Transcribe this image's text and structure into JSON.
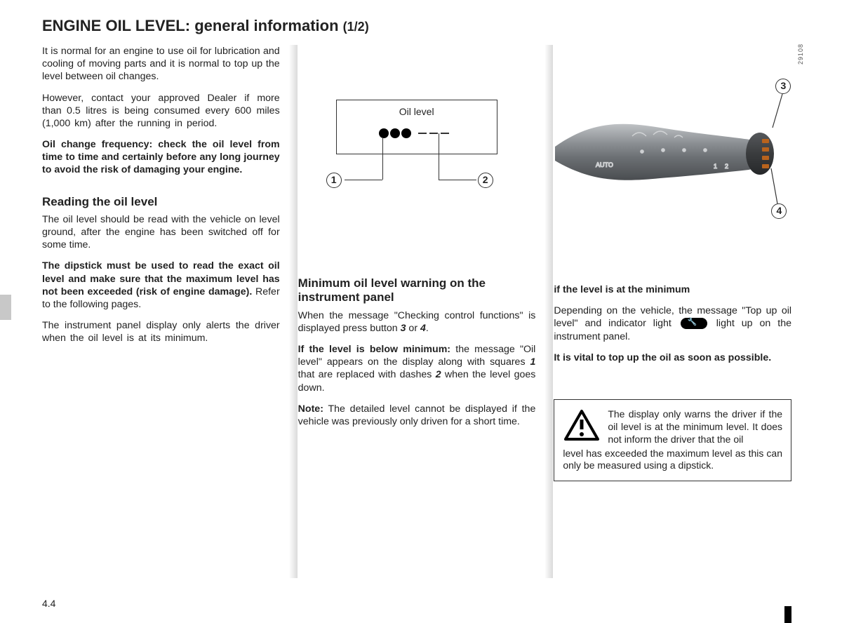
{
  "title": {
    "main": "ENGINE OIL LEVEL:",
    "sub": "general information",
    "fraction": "(1/2)"
  },
  "pageNumber": "4.4",
  "imageCode": "29108",
  "col1": {
    "p1": "It is normal for an engine to use oil for lubrication and cooling of moving parts and it is normal to top up the level between oil changes.",
    "p2": "However, contact your approved Dealer if more than 0.5 litres is being consumed every 600 miles (1,000 km) after the running in period.",
    "p3": "Oil change frequency: check the oil level from time to time and certainly before any long journey to avoid the risk of damaging your engine.",
    "h1": "Reading the oil level",
    "p4": "The oil level should be read with the vehicle on level ground, after the engine has been switched off for some time.",
    "p5a": "The dipstick must be used to read the exact oil level and make sure that the maximum level has not been exceeded (risk of engine damage).",
    "p5b": " Refer to the following pages.",
    "p6": "The instrument panel display only alerts the driver when the oil level is at its minimum."
  },
  "col2": {
    "diagramLabel": "Oil level",
    "c1": "1",
    "c2": "2",
    "h1": "Minimum oil level warning on the instrument panel",
    "p1a": "When the message \"Checking control functions\" is displayed press button ",
    "p1b": "3",
    "p1c": " or ",
    "p1d": "4",
    "p1e": ".",
    "p2a": "If the level is below minimum: ",
    "p2b": "the message \"Oil level\" appears on the display along with squares ",
    "p2c": "1",
    "p2d": " that are replaced with dashes ",
    "p2e": "2",
    "p2f": " when the level goes down.",
    "p3a": "Note:",
    "p3b": " The detailed level cannot be displayed if the vehicle was previously only driven for a short time."
  },
  "col3": {
    "c3": "3",
    "c4": "4",
    "h1": "if the level is at the minimum",
    "p1a": "Depending on the vehicle, the message \"Top up oil level\" and indicator light ",
    "p1b": " light up on the instrument panel.",
    "p2": "It is vital to top up the oil as soon as possible.",
    "warn": "The display only warns the driver if the oil level is at the minimum level. It does not inform the driver that the oil level has exceeded the maximum level as this can only be measured using a dipstick."
  }
}
